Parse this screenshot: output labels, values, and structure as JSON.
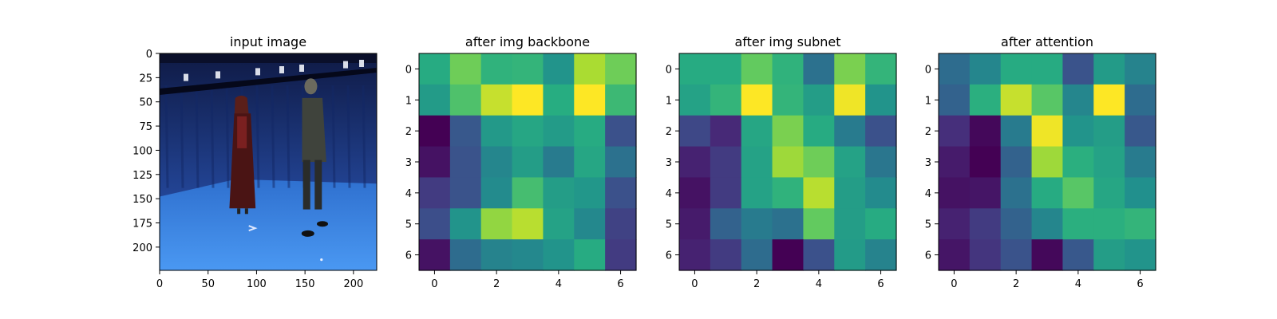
{
  "chart_data": [
    {
      "type": "image",
      "title": "input image",
      "xticks": [
        0,
        50,
        100,
        150,
        200
      ],
      "yticks": [
        0,
        25,
        50,
        75,
        100,
        125,
        150,
        175,
        200
      ],
      "xlim": [
        0,
        224
      ],
      "ylim": [
        224,
        0
      ],
      "scene": {
        "background_color": "#1e3a8c",
        "floor_color": "#3f86e6",
        "figures": [
          "person-red-dress",
          "person-dark-jacket"
        ]
      }
    },
    {
      "type": "heatmap",
      "title": "after img backbone",
      "xticks": [
        0,
        2,
        4,
        6
      ],
      "yticks": [
        0,
        1,
        2,
        3,
        4,
        5,
        6
      ],
      "colormap": "viridis",
      "values": [
        [
          0.62,
          0.78,
          0.65,
          0.66,
          0.52,
          0.88,
          0.78
        ],
        [
          0.55,
          0.72,
          0.92,
          1.0,
          0.63,
          1.0,
          0.68
        ],
        [
          0.0,
          0.28,
          0.54,
          0.6,
          0.55,
          0.62,
          0.25
        ],
        [
          0.05,
          0.26,
          0.46,
          0.56,
          0.42,
          0.6,
          0.38
        ],
        [
          0.18,
          0.26,
          0.48,
          0.7,
          0.56,
          0.53,
          0.25
        ],
        [
          0.24,
          0.52,
          0.84,
          0.9,
          0.58,
          0.47,
          0.2
        ],
        [
          0.05,
          0.36,
          0.45,
          0.47,
          0.52,
          0.62,
          0.18
        ]
      ]
    },
    {
      "type": "heatmap",
      "title": "after img subnet",
      "xticks": [
        0,
        2,
        4,
        6
      ],
      "yticks": [
        0,
        1,
        2,
        3,
        4,
        5,
        6
      ],
      "colormap": "viridis",
      "values": [
        [
          0.62,
          0.62,
          0.76,
          0.65,
          0.38,
          0.8,
          0.66
        ],
        [
          0.58,
          0.66,
          1.0,
          0.66,
          0.56,
          0.98,
          0.52
        ],
        [
          0.22,
          0.12,
          0.6,
          0.8,
          0.62,
          0.42,
          0.25
        ],
        [
          0.1,
          0.18,
          0.58,
          0.86,
          0.78,
          0.58,
          0.4
        ],
        [
          0.05,
          0.18,
          0.58,
          0.65,
          0.9,
          0.56,
          0.48
        ],
        [
          0.08,
          0.32,
          0.42,
          0.38,
          0.76,
          0.56,
          0.62
        ],
        [
          0.1,
          0.18,
          0.36,
          0.0,
          0.25,
          0.55,
          0.45
        ]
      ]
    },
    {
      "type": "heatmap",
      "title": "after attention",
      "xticks": [
        0,
        2,
        4,
        6
      ],
      "yticks": [
        0,
        1,
        2,
        3,
        4,
        5,
        6
      ],
      "colormap": "viridis",
      "values": [
        [
          0.36,
          0.46,
          0.62,
          0.62,
          0.26,
          0.55,
          0.45
        ],
        [
          0.32,
          0.64,
          0.92,
          0.74,
          0.46,
          1.0,
          0.36
        ],
        [
          0.14,
          0.02,
          0.42,
          0.98,
          0.52,
          0.56,
          0.28
        ],
        [
          0.08,
          0.0,
          0.32,
          0.86,
          0.64,
          0.58,
          0.42
        ],
        [
          0.05,
          0.06,
          0.38,
          0.62,
          0.74,
          0.6,
          0.5
        ],
        [
          0.1,
          0.18,
          0.32,
          0.46,
          0.64,
          0.64,
          0.66
        ],
        [
          0.06,
          0.16,
          0.26,
          0.02,
          0.28,
          0.56,
          0.52
        ]
      ]
    }
  ]
}
